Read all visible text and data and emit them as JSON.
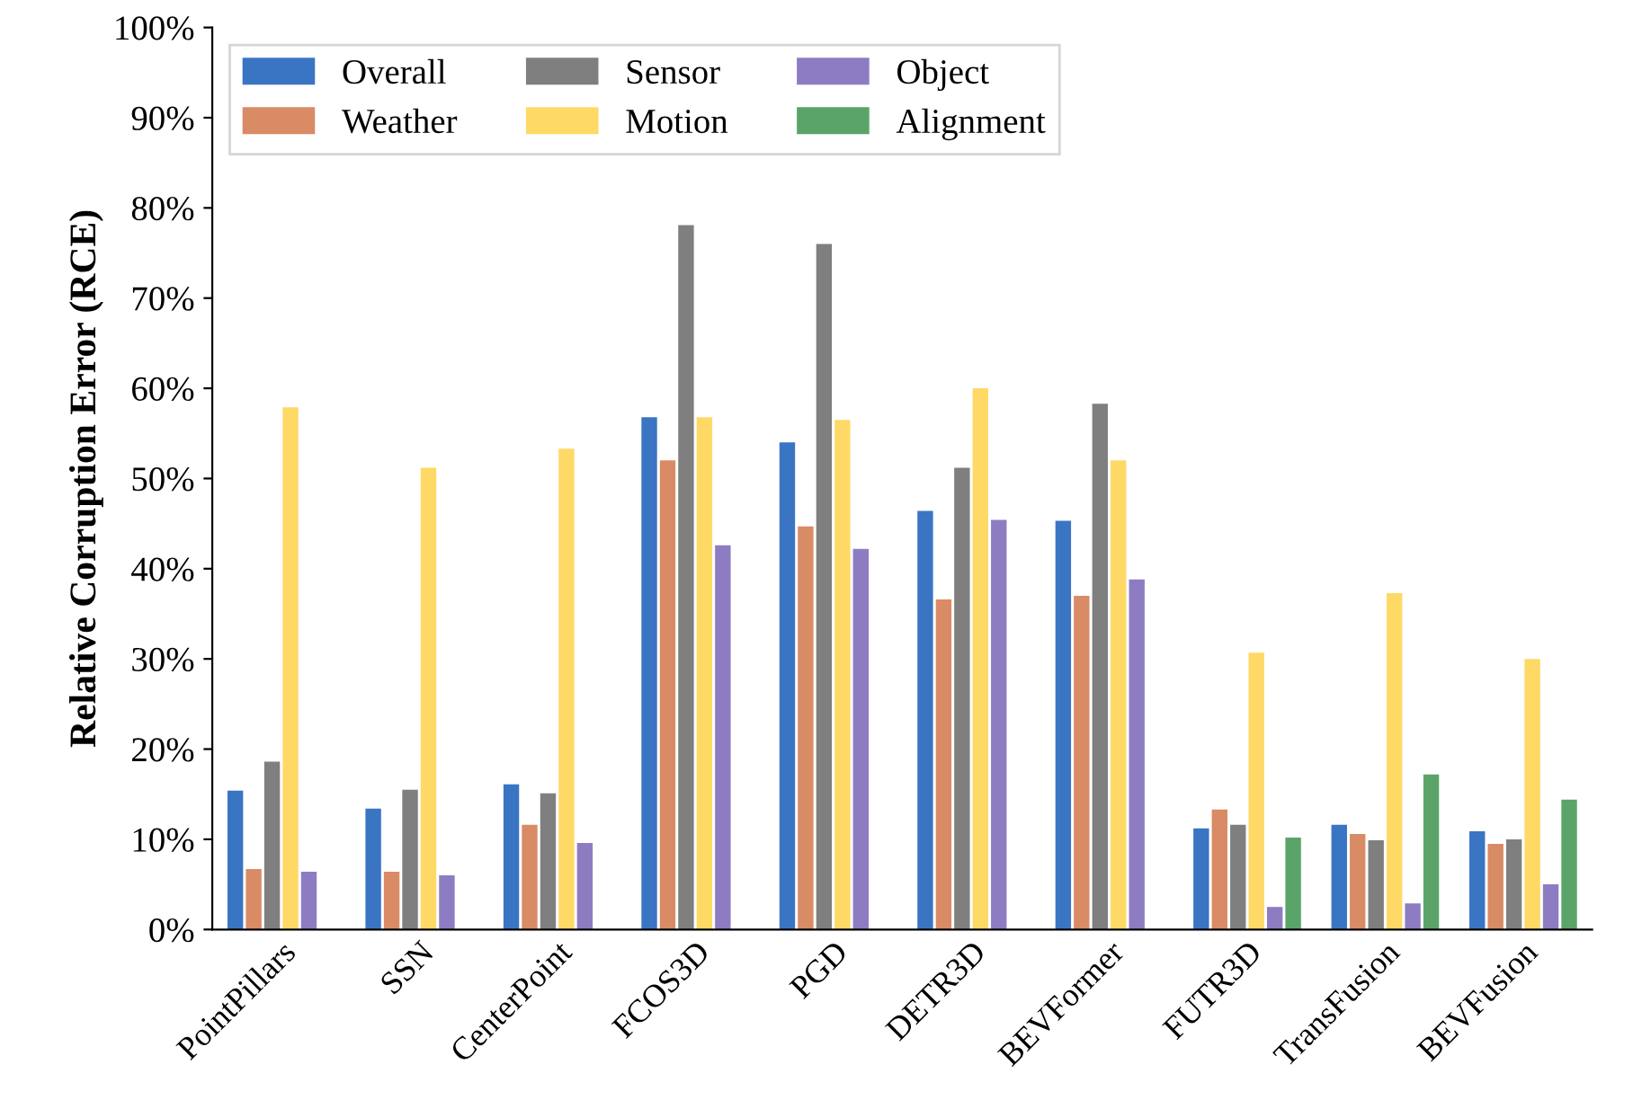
{
  "chart_data": {
    "type": "bar",
    "ylabel": "Relative Corruption Error (RCE)",
    "categories": [
      "PointPillars",
      "SSN",
      "CenterPoint",
      "FCOS3D",
      "PGD",
      "DETR3D",
      "BEVFormer",
      "FUTR3D",
      "TransFusion",
      "BEVFusion"
    ],
    "series": [
      {
        "name": "Overall",
        "color": "#3a75c4",
        "values": [
          15.4,
          13.4,
          16.1,
          56.8,
          54.0,
          46.4,
          45.3,
          11.2,
          11.6,
          10.9
        ]
      },
      {
        "name": "Weather",
        "color": "#d98b65",
        "values": [
          6.7,
          6.4,
          11.6,
          52.0,
          44.7,
          36.6,
          37.0,
          13.3,
          10.6,
          9.5
        ]
      },
      {
        "name": "Sensor",
        "color": "#7f7f7f",
        "values": [
          18.6,
          15.5,
          15.1,
          78.1,
          76.0,
          51.2,
          58.3,
          11.6,
          9.9,
          10.0
        ]
      },
      {
        "name": "Motion",
        "color": "#ffd966",
        "values": [
          57.9,
          51.2,
          53.3,
          56.8,
          56.5,
          60.0,
          52.0,
          30.7,
          37.3,
          30.0
        ]
      },
      {
        "name": "Object",
        "color": "#8e7cc3",
        "values": [
          6.4,
          6.0,
          9.6,
          42.6,
          42.2,
          45.4,
          38.8,
          2.5,
          2.9,
          5.0
        ]
      },
      {
        "name": "Alignment",
        "color": "#5aa469",
        "values": [
          null,
          null,
          null,
          null,
          null,
          null,
          null,
          10.2,
          17.2,
          14.4
        ]
      }
    ],
    "ylim": [
      0,
      100
    ],
    "yticks": [
      {
        "value": 0,
        "label": "0%"
      },
      {
        "value": 10,
        "label": "10%"
      },
      {
        "value": 20,
        "label": "20%"
      },
      {
        "value": 30,
        "label": "30%"
      },
      {
        "value": 40,
        "label": "40%"
      },
      {
        "value": 50,
        "label": "50%"
      },
      {
        "value": 60,
        "label": "60%"
      },
      {
        "value": 70,
        "label": "70%"
      },
      {
        "value": 80,
        "label": "80%"
      },
      {
        "value": 90,
        "label": "90%"
      },
      {
        "value": 100,
        "label": "100%"
      }
    ],
    "grid": false,
    "legend": "top left"
  }
}
